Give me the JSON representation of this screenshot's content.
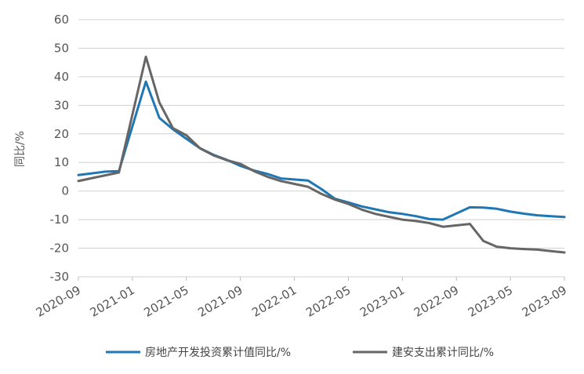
{
  "chart_data": {
    "type": "line",
    "title": "",
    "xlabel": "",
    "ylabel": "同比/%",
    "ylim": [
      -30,
      60
    ],
    "yticks": [
      60,
      50,
      40,
      30,
      20,
      10,
      0,
      -10,
      -20,
      -30
    ],
    "xlim": [
      "2020-09",
      "2023-09"
    ],
    "xticks": [
      "2020-09",
      "2021-01",
      "2021-05",
      "2021-09",
      "2022-01",
      "2022-05",
      "2023-01",
      "2022-09",
      "2023-05",
      "2023-09"
    ],
    "grid": "horizontal",
    "legend_position": "bottom",
    "series": [
      {
        "name": "房地产开发投资累计值同比/%",
        "color": "#1f77b4",
        "points": [
          [
            "2020-09",
            5.6
          ],
          [
            "2020-11",
            6.8
          ],
          [
            "2020-12",
            7.0
          ],
          [
            "2021-02",
            38.3
          ],
          [
            "2021-03",
            25.6
          ],
          [
            "2021-04",
            21.6
          ],
          [
            "2021-05",
            18.3
          ],
          [
            "2021-06",
            15.0
          ],
          [
            "2021-07",
            12.7
          ],
          [
            "2021-08",
            10.9
          ],
          [
            "2021-09",
            8.8
          ],
          [
            "2021-10",
            7.2
          ],
          [
            "2021-11",
            6.0
          ],
          [
            "2021-12",
            4.4
          ],
          [
            "2022-02",
            3.7
          ],
          [
            "2022-03",
            0.7
          ],
          [
            "2022-04",
            -2.7
          ],
          [
            "2022-05",
            -4.0
          ],
          [
            "2022-06",
            -5.4
          ],
          [
            "2022-07",
            -6.4
          ],
          [
            "2022-08",
            -7.4
          ],
          [
            "2022-09",
            -8.0
          ],
          [
            "2022-10",
            -8.8
          ],
          [
            "2022-11",
            -9.8
          ],
          [
            "2022-12",
            -10.0
          ],
          [
            "2023-02",
            -5.7
          ],
          [
            "2023-03",
            -5.8
          ],
          [
            "2023-04",
            -6.2
          ],
          [
            "2023-05",
            -7.2
          ],
          [
            "2023-06",
            -7.9
          ],
          [
            "2023-07",
            -8.5
          ],
          [
            "2023-08",
            -8.8
          ],
          [
            "2023-09",
            -9.1
          ]
        ]
      },
      {
        "name": "建安支出累计同比/%",
        "color": "#666666",
        "points": [
          [
            "2020-09",
            3.5
          ],
          [
            "2020-11",
            5.5
          ],
          [
            "2020-12",
            6.5
          ],
          [
            "2021-02",
            47.0
          ],
          [
            "2021-03",
            31.0
          ],
          [
            "2021-04",
            22.0
          ],
          [
            "2021-05",
            19.5
          ],
          [
            "2021-06",
            15.0
          ],
          [
            "2021-07",
            12.5
          ],
          [
            "2021-08",
            10.8
          ],
          [
            "2021-09",
            9.5
          ],
          [
            "2021-10",
            7.0
          ],
          [
            "2021-11",
            5.0
          ],
          [
            "2021-12",
            3.5
          ],
          [
            "2022-02",
            1.5
          ],
          [
            "2022-03",
            -1.0
          ],
          [
            "2022-04",
            -3.0
          ],
          [
            "2022-05",
            -4.5
          ],
          [
            "2022-06",
            -6.5
          ],
          [
            "2022-07",
            -8.0
          ],
          [
            "2022-08",
            -9.0
          ],
          [
            "2022-09",
            -10.0
          ],
          [
            "2022-10",
            -10.5
          ],
          [
            "2022-11",
            -11.2
          ],
          [
            "2022-12",
            -12.5
          ],
          [
            "2023-02",
            -11.5
          ],
          [
            "2023-03",
            -17.5
          ],
          [
            "2023-04",
            -19.5
          ],
          [
            "2023-05",
            -20.0
          ],
          [
            "2023-06",
            -20.3
          ],
          [
            "2023-07",
            -20.5
          ],
          [
            "2023-08",
            -21.0
          ],
          [
            "2023-09",
            -21.5
          ]
        ]
      }
    ]
  }
}
